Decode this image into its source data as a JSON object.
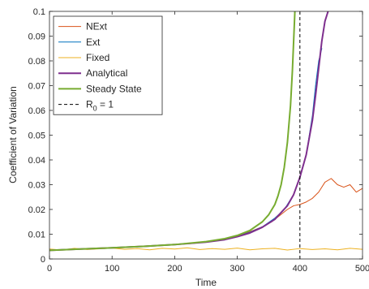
{
  "chart_data": {
    "type": "line",
    "title": "",
    "xlabel": "Time",
    "ylabel": "Coefficient of Variation",
    "xlim": [
      0,
      500
    ],
    "ylim": [
      0,
      0.1
    ],
    "xticks": [
      0,
      100,
      200,
      300,
      400,
      500
    ],
    "xtick_labels": [
      "0",
      "100",
      "200",
      "300",
      "400",
      "500"
    ],
    "yticks": [
      0,
      0.01,
      0.02,
      0.03,
      0.04,
      0.05,
      0.06,
      0.07,
      0.08,
      0.09,
      0.1
    ],
    "ytick_labels": [
      "0",
      "0.01",
      "0.02",
      "0.03",
      "0.04",
      "0.05",
      "0.06",
      "0.07",
      "0.08",
      "0.09",
      "0.1"
    ],
    "grid": false,
    "legend_position": "top-left",
    "series": [
      {
        "name": "NExt",
        "color": "#d95319",
        "width": 1,
        "style": "solid",
        "x": [
          0,
          25,
          50,
          75,
          100,
          125,
          150,
          175,
          200,
          225,
          250,
          275,
          300,
          320,
          340,
          355,
          370,
          380,
          390,
          400,
          410,
          420,
          430,
          440,
          450,
          460,
          470,
          480,
          490,
          500
        ],
        "y": [
          0.0035,
          0.0038,
          0.004,
          0.0042,
          0.0045,
          0.0048,
          0.0051,
          0.0055,
          0.0058,
          0.0062,
          0.0068,
          0.0078,
          0.0092,
          0.011,
          0.013,
          0.015,
          0.018,
          0.02,
          0.0215,
          0.022,
          0.023,
          0.0245,
          0.027,
          0.031,
          0.0325,
          0.03,
          0.029,
          0.03,
          0.027,
          0.0285
        ]
      },
      {
        "name": "Ext",
        "color": "#0072bd",
        "width": 1,
        "style": "solid",
        "x": [
          0,
          25,
          50,
          75,
          100,
          125,
          150,
          175,
          200,
          225,
          250,
          275,
          300,
          320,
          340,
          360,
          375,
          390,
          400,
          410,
          420,
          425,
          430,
          435
        ],
        "y": [
          0.0035,
          0.0039,
          0.0041,
          0.0043,
          0.0046,
          0.0049,
          0.0052,
          0.0055,
          0.0059,
          0.0063,
          0.0069,
          0.0079,
          0.0092,
          0.0108,
          0.013,
          0.0165,
          0.02,
          0.026,
          0.033,
          0.042,
          0.058,
          0.07,
          0.08,
          0.085
        ]
      },
      {
        "name": "Fixed",
        "color": "#edb120",
        "width": 1,
        "style": "solid",
        "x": [
          0,
          20,
          40,
          60,
          80,
          100,
          120,
          140,
          160,
          180,
          200,
          220,
          240,
          260,
          280,
          300,
          320,
          340,
          360,
          380,
          400,
          420,
          440,
          460,
          480,
          500
        ],
        "y": [
          0.004,
          0.0036,
          0.0043,
          0.0038,
          0.0041,
          0.0044,
          0.0039,
          0.0042,
          0.0037,
          0.0043,
          0.004,
          0.0045,
          0.0038,
          0.0042,
          0.0039,
          0.0044,
          0.0037,
          0.0041,
          0.0043,
          0.0036,
          0.0042,
          0.0038,
          0.0041,
          0.0037,
          0.0043,
          0.0039
        ]
      },
      {
        "name": "Analytical",
        "color": "#7e2f8e",
        "width": 2,
        "style": "solid",
        "x": [
          0,
          50,
          100,
          150,
          200,
          250,
          280,
          300,
          320,
          340,
          360,
          380,
          390,
          400,
          410,
          420,
          425,
          430,
          435,
          440,
          445
        ],
        "y": [
          0.0035,
          0.004,
          0.0045,
          0.0051,
          0.0058,
          0.0068,
          0.0078,
          0.009,
          0.0105,
          0.0128,
          0.016,
          0.0215,
          0.026,
          0.033,
          0.042,
          0.056,
          0.066,
          0.077,
          0.088,
          0.096,
          0.1
        ]
      },
      {
        "name": "Steady State",
        "color": "#77ac30",
        "width": 2,
        "style": "solid",
        "x": [
          0,
          50,
          100,
          150,
          200,
          250,
          280,
          300,
          320,
          340,
          350,
          360,
          365,
          370,
          375,
          380,
          385,
          388,
          390,
          392
        ],
        "y": [
          0.0035,
          0.004,
          0.0045,
          0.0051,
          0.0058,
          0.007,
          0.0082,
          0.0095,
          0.0115,
          0.015,
          0.0178,
          0.022,
          0.0255,
          0.03,
          0.037,
          0.047,
          0.062,
          0.076,
          0.088,
          0.1
        ]
      },
      {
        "name": "R",
        "name_sub": "0",
        "name_suffix": " = 1",
        "color": "#000000",
        "width": 1,
        "style": "dashed",
        "vline_x": 400
      }
    ]
  }
}
